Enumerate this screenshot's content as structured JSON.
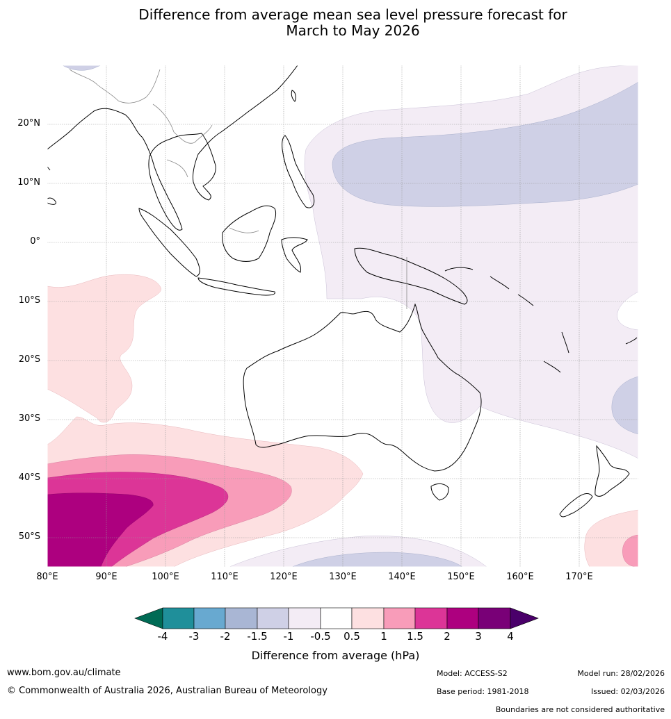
{
  "title": {
    "line1": "Difference from average mean sea level pressure forecast for",
    "line2": "March to May 2026"
  },
  "map": {
    "lat_labels": [
      "20°N",
      "10°N",
      "0°",
      "10°S",
      "20°S",
      "30°S",
      "40°S",
      "50°S"
    ],
    "lon_labels": [
      "80°E",
      "90°E",
      "100°E",
      "110°E",
      "120°E",
      "130°E",
      "140°E",
      "150°E",
      "160°E",
      "170°E"
    ],
    "lat_range": [
      -55,
      30
    ],
    "lon_range": [
      80,
      180
    ]
  },
  "colorbar": {
    "title": "Difference from average (hPa)",
    "ticks": [
      "-4",
      "-3",
      "-2",
      "-1.5",
      "-1",
      "-0.5",
      "0.5",
      "1",
      "1.5",
      "2",
      "3",
      "4"
    ],
    "colors": {
      "lt_m4": "#006b55",
      "m4_m3": "#1f8f9a",
      "m3_m2": "#68a9d0",
      "m2_m15": "#a9b6d4",
      "m15_m1": "#cfd0e6",
      "m1_m05": "#f3ecf5",
      "m05_05": "#ffffff",
      "p05_1": "#fde0e1",
      "p1_15": "#f89cb9",
      "p15_2": "#dc3597",
      "p2_3": "#ad007f",
      "p3_4": "#790077",
      "gt_4": "#4a006a"
    }
  },
  "footer": {
    "website": "www.bom.gov.au/climate",
    "copyright": "© Commonwealth of Australia 2026, Australian Bureau of Meteorology",
    "model": "Model: ACCESS-S2",
    "base_period": "Base period: 1981-2018",
    "model_run": "Model run: 28/02/2026",
    "issued": "Issued: 02/03/2026",
    "disclaimer": "Boundaries are not considered authoritative"
  }
}
